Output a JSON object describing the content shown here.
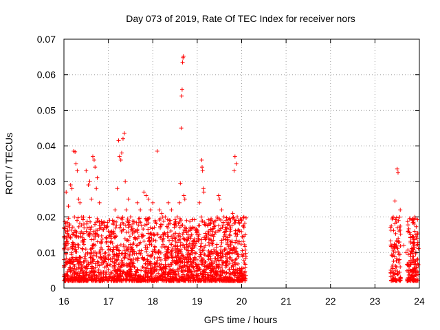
{
  "chart_data": {
    "type": "scatter",
    "title": "Day 073 of 2019, Rate Of TEC Index for receiver nors",
    "xlabel": "GPS time / hours",
    "ylabel": "ROTI / TECUs",
    "xlim": [
      16,
      24
    ],
    "ylim": [
      0,
      0.07
    ],
    "xticks": [
      16,
      17,
      18,
      19,
      20,
      21,
      22,
      23,
      24
    ],
    "xtick_labels": [
      "16",
      "17",
      "18",
      "19",
      "20",
      "21",
      "22",
      "23",
      "24"
    ],
    "yticks": [
      0,
      0.01,
      0.02,
      0.03,
      0.04,
      0.05,
      0.06,
      0.07
    ],
    "ytick_labels": [
      "0",
      "0.01",
      "0.02",
      "0.03",
      "0.04",
      "0.05",
      "0.06",
      "0.07"
    ],
    "grid": true,
    "marker": "plus",
    "color": "#ff0000",
    "series": [
      {
        "points": [
          [
            16.05,
            0.027
          ],
          [
            16.08,
            0.016
          ],
          [
            16.1,
            0.023
          ],
          [
            16.12,
            0.018
          ],
          [
            16.15,
            0.029
          ],
          [
            16.18,
            0.028
          ],
          [
            16.22,
            0.0385
          ],
          [
            16.25,
            0.0383
          ],
          [
            16.27,
            0.035
          ],
          [
            16.3,
            0.033
          ],
          [
            16.33,
            0.025
          ],
          [
            16.36,
            0.024
          ],
          [
            16.4,
            0.02
          ],
          [
            16.45,
            0.018
          ],
          [
            16.5,
            0.033
          ],
          [
            16.55,
            0.029
          ],
          [
            16.58,
            0.03
          ],
          [
            16.62,
            0.025
          ],
          [
            16.65,
            0.037
          ],
          [
            16.68,
            0.036
          ],
          [
            16.7,
            0.034
          ],
          [
            16.73,
            0.028
          ],
          [
            16.75,
            0.031
          ],
          [
            16.8,
            0.024
          ],
          [
            16.85,
            0.018
          ],
          [
            16.92,
            0.017
          ],
          [
            17.0,
            0.016
          ],
          [
            17.08,
            0.015
          ],
          [
            17.15,
            0.022
          ],
          [
            17.2,
            0.028
          ],
          [
            17.23,
            0.0415
          ],
          [
            17.25,
            0.037
          ],
          [
            17.28,
            0.036
          ],
          [
            17.3,
            0.038
          ],
          [
            17.33,
            0.042
          ],
          [
            17.36,
            0.0435
          ],
          [
            17.38,
            0.03
          ],
          [
            17.4,
            0.022
          ],
          [
            17.45,
            0.025
          ],
          [
            17.5,
            0.02
          ],
          [
            17.55,
            0.018
          ],
          [
            17.6,
            0.016
          ],
          [
            17.65,
            0.024
          ],
          [
            17.72,
            0.022
          ],
          [
            17.8,
            0.027
          ],
          [
            17.85,
            0.026
          ],
          [
            17.9,
            0.025
          ],
          [
            17.95,
            0.022
          ],
          [
            18.0,
            0.024
          ],
          [
            18.05,
            0.019
          ],
          [
            18.1,
            0.0385
          ],
          [
            18.15,
            0.022
          ],
          [
            18.2,
            0.021
          ],
          [
            18.28,
            0.02
          ],
          [
            18.35,
            0.024
          ],
          [
            18.42,
            0.022
          ],
          [
            18.5,
            0.018
          ],
          [
            18.55,
            0.02
          ],
          [
            18.6,
            0.024
          ],
          [
            18.62,
            0.0295
          ],
          [
            18.64,
            0.045
          ],
          [
            18.65,
            0.054
          ],
          [
            18.66,
            0.0558
          ],
          [
            18.67,
            0.0635
          ],
          [
            18.68,
            0.0648
          ],
          [
            18.69,
            0.0652
          ],
          [
            18.7,
            0.026
          ],
          [
            18.72,
            0.025
          ],
          [
            18.76,
            0.019
          ],
          [
            18.8,
            0.016
          ],
          [
            18.85,
            0.014
          ],
          [
            18.9,
            0.013
          ],
          [
            18.95,
            0.012
          ],
          [
            19.0,
            0.016
          ],
          [
            19.05,
            0.024
          ],
          [
            19.1,
            0.036
          ],
          [
            19.11,
            0.034
          ],
          [
            19.12,
            0.033
          ],
          [
            19.14,
            0.028
          ],
          [
            19.15,
            0.027
          ],
          [
            19.2,
            0.018
          ],
          [
            19.25,
            0.016
          ],
          [
            19.3,
            0.018
          ],
          [
            19.35,
            0.015
          ],
          [
            19.42,
            0.019
          ],
          [
            19.48,
            0.026
          ],
          [
            19.5,
            0.025
          ],
          [
            19.55,
            0.022
          ],
          [
            19.6,
            0.02
          ],
          [
            19.65,
            0.019
          ],
          [
            19.7,
            0.018
          ],
          [
            19.75,
            0.016
          ],
          [
            19.8,
            0.021
          ],
          [
            19.83,
            0.033
          ],
          [
            19.85,
            0.037
          ],
          [
            19.88,
            0.035
          ],
          [
            19.9,
            0.02
          ],
          [
            19.95,
            0.016
          ],
          [
            20.0,
            0.019
          ],
          [
            20.05,
            0.02
          ],
          [
            20.08,
            0.015
          ],
          [
            23.4,
            0.009
          ],
          [
            23.45,
            0.0245
          ],
          [
            23.48,
            0.012
          ],
          [
            23.5,
            0.0335
          ],
          [
            23.52,
            0.0325
          ],
          [
            23.53,
            0.019
          ],
          [
            23.55,
            0.017
          ],
          [
            23.57,
            0.022
          ],
          [
            23.65,
            0.012
          ],
          [
            23.7,
            0.01
          ],
          [
            23.75,
            0.016
          ],
          [
            23.8,
            0.015
          ],
          [
            23.85,
            0.019
          ],
          [
            23.88,
            0.018
          ],
          [
            23.9,
            0.02
          ],
          [
            23.92,
            0.015
          ],
          [
            23.95,
            0.014
          ]
        ]
      }
    ]
  }
}
